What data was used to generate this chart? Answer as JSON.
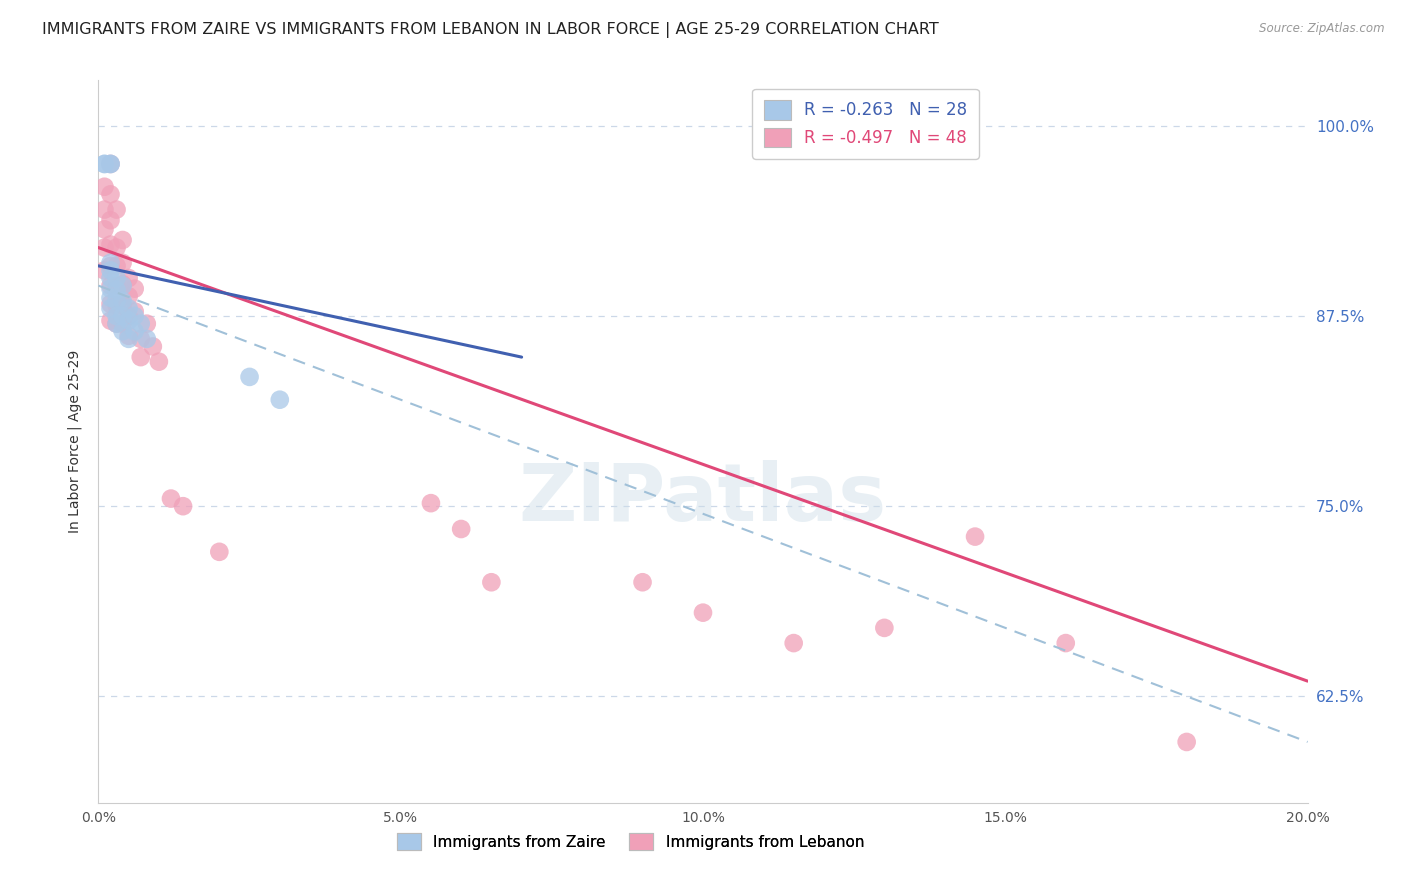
{
  "title": "IMMIGRANTS FROM ZAIRE VS IMMIGRANTS FROM LEBANON IN LABOR FORCE | AGE 25-29 CORRELATION CHART",
  "source_text": "Source: ZipAtlas.com",
  "ylabel": "In Labor Force | Age 25-29",
  "xlim": [
    0.0,
    0.2
  ],
  "ylim": [
    0.555,
    1.03
  ],
  "ytick_positions": [
    0.625,
    0.75,
    0.875,
    1.0
  ],
  "ytick_labels": [
    "62.5%",
    "75.0%",
    "87.5%",
    "100.0%"
  ],
  "xtick_positions": [
    0.0,
    0.05,
    0.1,
    0.15,
    0.2
  ],
  "xtick_labels": [
    "0.0%",
    "5.0%",
    "10.0%",
    "15.0%",
    "20.0%"
  ],
  "legend_r_zaire": "-0.263",
  "legend_n_zaire": "28",
  "legend_r_lebanon": "-0.497",
  "legend_n_lebanon": "48",
  "watermark": "ZIPatlas",
  "zaire_color": "#a8c8e8",
  "lebanon_color": "#f0a0b8",
  "zaire_line_color": "#4060b0",
  "lebanon_line_color": "#e04878",
  "dashed_color": "#a0c0d8",
  "background_color": "#ffffff",
  "grid_color": "#ccd8e8",
  "title_fontsize": 11.5,
  "axis_fontsize": 10,
  "tick_fontsize": 10,
  "marker_size": 10,
  "zaire_line": [
    [
      0.0,
      0.908
    ],
    [
      0.07,
      0.848
    ]
  ],
  "lebanon_line": [
    [
      0.0,
      0.92
    ],
    [
      0.2,
      0.635
    ]
  ],
  "dashed_line": [
    [
      0.0,
      0.895
    ],
    [
      0.2,
      0.595
    ]
  ],
  "zaire_points": [
    [
      0.001,
      0.975
    ],
    [
      0.001,
      0.975
    ],
    [
      0.002,
      0.975
    ],
    [
      0.002,
      0.975
    ],
    [
      0.002,
      0.91
    ],
    [
      0.002,
      0.905
    ],
    [
      0.002,
      0.9
    ],
    [
      0.002,
      0.893
    ],
    [
      0.002,
      0.887
    ],
    [
      0.002,
      0.88
    ],
    [
      0.003,
      0.9
    ],
    [
      0.003,
      0.892
    ],
    [
      0.003,
      0.885
    ],
    [
      0.003,
      0.875
    ],
    [
      0.003,
      0.87
    ],
    [
      0.004,
      0.895
    ],
    [
      0.004,
      0.885
    ],
    [
      0.004,
      0.875
    ],
    [
      0.004,
      0.865
    ],
    [
      0.005,
      0.88
    ],
    [
      0.005,
      0.872
    ],
    [
      0.005,
      0.86
    ],
    [
      0.006,
      0.875
    ],
    [
      0.006,
      0.865
    ],
    [
      0.007,
      0.87
    ],
    [
      0.008,
      0.86
    ],
    [
      0.025,
      0.835
    ],
    [
      0.03,
      0.82
    ]
  ],
  "lebanon_points": [
    [
      0.001,
      0.96
    ],
    [
      0.001,
      0.945
    ],
    [
      0.001,
      0.932
    ],
    [
      0.001,
      0.92
    ],
    [
      0.001,
      0.905
    ],
    [
      0.002,
      0.975
    ],
    [
      0.002,
      0.955
    ],
    [
      0.002,
      0.938
    ],
    [
      0.002,
      0.922
    ],
    [
      0.002,
      0.908
    ],
    [
      0.002,
      0.895
    ],
    [
      0.002,
      0.883
    ],
    [
      0.002,
      0.872
    ],
    [
      0.003,
      0.945
    ],
    [
      0.003,
      0.92
    ],
    [
      0.003,
      0.908
    ],
    [
      0.003,
      0.895
    ],
    [
      0.003,
      0.882
    ],
    [
      0.003,
      0.87
    ],
    [
      0.004,
      0.925
    ],
    [
      0.004,
      0.91
    ],
    [
      0.004,
      0.896
    ],
    [
      0.004,
      0.882
    ],
    [
      0.004,
      0.87
    ],
    [
      0.005,
      0.9
    ],
    [
      0.005,
      0.888
    ],
    [
      0.005,
      0.875
    ],
    [
      0.005,
      0.862
    ],
    [
      0.006,
      0.893
    ],
    [
      0.006,
      0.878
    ],
    [
      0.007,
      0.86
    ],
    [
      0.007,
      0.848
    ],
    [
      0.008,
      0.87
    ],
    [
      0.009,
      0.855
    ],
    [
      0.01,
      0.845
    ],
    [
      0.012,
      0.755
    ],
    [
      0.014,
      0.75
    ],
    [
      0.02,
      0.72
    ],
    [
      0.055,
      0.752
    ],
    [
      0.06,
      0.735
    ],
    [
      0.065,
      0.7
    ],
    [
      0.09,
      0.7
    ],
    [
      0.1,
      0.68
    ],
    [
      0.115,
      0.66
    ],
    [
      0.13,
      0.67
    ],
    [
      0.145,
      0.73
    ],
    [
      0.16,
      0.66
    ],
    [
      0.18,
      0.595
    ]
  ]
}
